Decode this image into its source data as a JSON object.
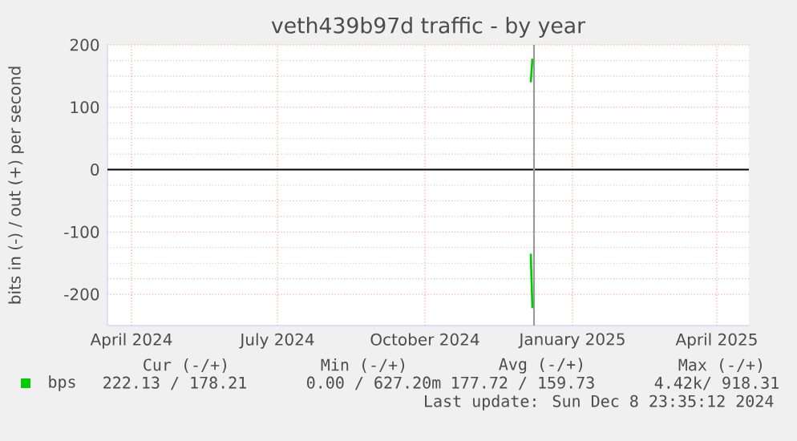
{
  "chart_data": {
    "type": "line",
    "title": "veth439b97d traffic - by year",
    "ylabel": "bits in (-) / out (+) per second",
    "xlim": [
      "2024-03-17",
      "2025-04-21"
    ],
    "ylim": [
      -250,
      200
    ],
    "xticks": [
      {
        "value": "2024-04-01",
        "label": "April 2024"
      },
      {
        "value": "2024-07-01",
        "label": "July 2024"
      },
      {
        "value": "2024-10-01",
        "label": "October 2024"
      },
      {
        "value": "2025-01-01",
        "label": "January 2025"
      },
      {
        "value": "2025-04-01",
        "label": "April 2025"
      }
    ],
    "yticks": [
      -200,
      -100,
      0,
      100,
      200
    ],
    "grid": true,
    "legend": "bottom left",
    "marker": "none",
    "line_style": "solid",
    "series": [
      {
        "name": "bps",
        "color": "#00cc00",
        "x": [
          "2024-12-06",
          "2024-12-07"
        ],
        "values": [
          140,
          178
        ]
      },
      {
        "color": "#00cc00",
        "x": [
          "2024-12-06",
          "2024-12-07"
        ],
        "values": [
          -135,
          -222
        ]
      }
    ],
    "ref_lines": [
      {
        "axis": "y",
        "value": 0,
        "color": "#000000"
      },
      {
        "axis": "x",
        "value": "2024-12-08",
        "color": "#999999"
      }
    ],
    "annotations": [
      "Cur (-/+)",
      "Min (-/+)",
      "Avg (-/+)",
      "Max (-/+)",
      "222.13 / 178.21",
      "0.00 / 627.20m",
      "177.72 / 159.73",
      "4.42k/ 918.31",
      "Last update: Sun Dec  8 23:35:12 2024"
    ]
  }
}
